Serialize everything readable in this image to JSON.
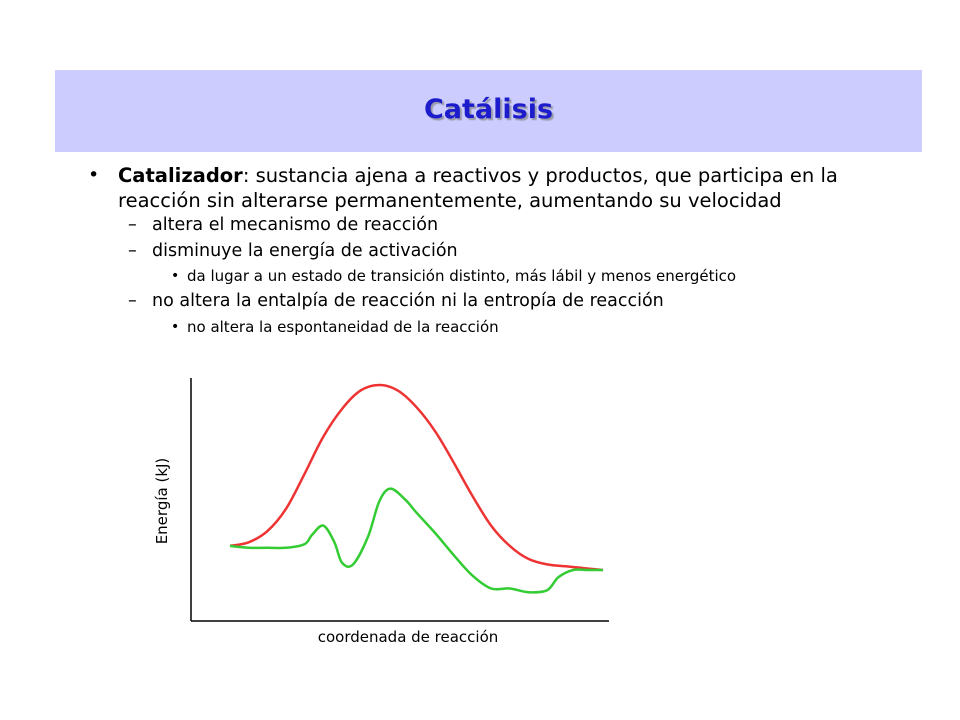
{
  "slide": {
    "title": "Catálisis"
  },
  "content": {
    "main_term": "Catalizador",
    "main_rest": ": sustancia ajena a reactivos y productos, que participa en la reacción sin alterarse permanentemente, aumentando su velocidad",
    "items": [
      {
        "level": 2,
        "text": "altera el mecanismo de reacción"
      },
      {
        "level": 2,
        "text": "disminuye la energía de activación"
      },
      {
        "level": 3,
        "text": "da lugar a un estado de transición distinto, más lábil y menos energético"
      },
      {
        "level": 2,
        "text": "no altera la entalpía de reacción ni la entropía de reacción"
      },
      {
        "level": 3,
        "text": "no altera la espontaneidad de la reacción"
      }
    ]
  },
  "chart_data": {
    "type": "line",
    "xlabel": "coordenada de reacción",
    "ylabel": "Energía (kJ)",
    "x_ticks": false,
    "y_ticks": false,
    "grid": false,
    "series": [
      {
        "color": "#ee3333",
        "x": [
          0,
          0.05,
          0.1,
          0.15,
          0.2,
          0.25,
          0.3,
          0.35,
          0.4,
          0.45,
          0.5,
          0.55,
          0.6,
          0.65,
          0.7,
          0.75,
          0.8,
          0.85,
          0.9,
          0.95,
          1.0
        ],
        "y": [
          0.13,
          0.15,
          0.21,
          0.33,
          0.52,
          0.72,
          0.87,
          0.97,
          1.0,
          0.97,
          0.88,
          0.75,
          0.58,
          0.4,
          0.24,
          0.13,
          0.06,
          0.03,
          0.02,
          0.01,
          0.0
        ]
      },
      {
        "color": "#33cc33",
        "x": [
          0,
          0.05,
          0.1,
          0.15,
          0.2,
          0.22,
          0.25,
          0.28,
          0.3,
          0.33,
          0.37,
          0.4,
          0.43,
          0.47,
          0.5,
          0.55,
          0.6,
          0.65,
          0.7,
          0.75,
          0.8,
          0.85,
          0.88,
          0.92,
          0.96,
          1.0
        ],
        "y": [
          0.13,
          0.12,
          0.12,
          0.12,
          0.14,
          0.19,
          0.24,
          0.15,
          0.04,
          0.03,
          0.18,
          0.37,
          0.44,
          0.38,
          0.31,
          0.2,
          0.08,
          -0.03,
          -0.1,
          -0.1,
          -0.12,
          -0.11,
          -0.04,
          0.0,
          0.0,
          0.0
        ]
      }
    ]
  }
}
